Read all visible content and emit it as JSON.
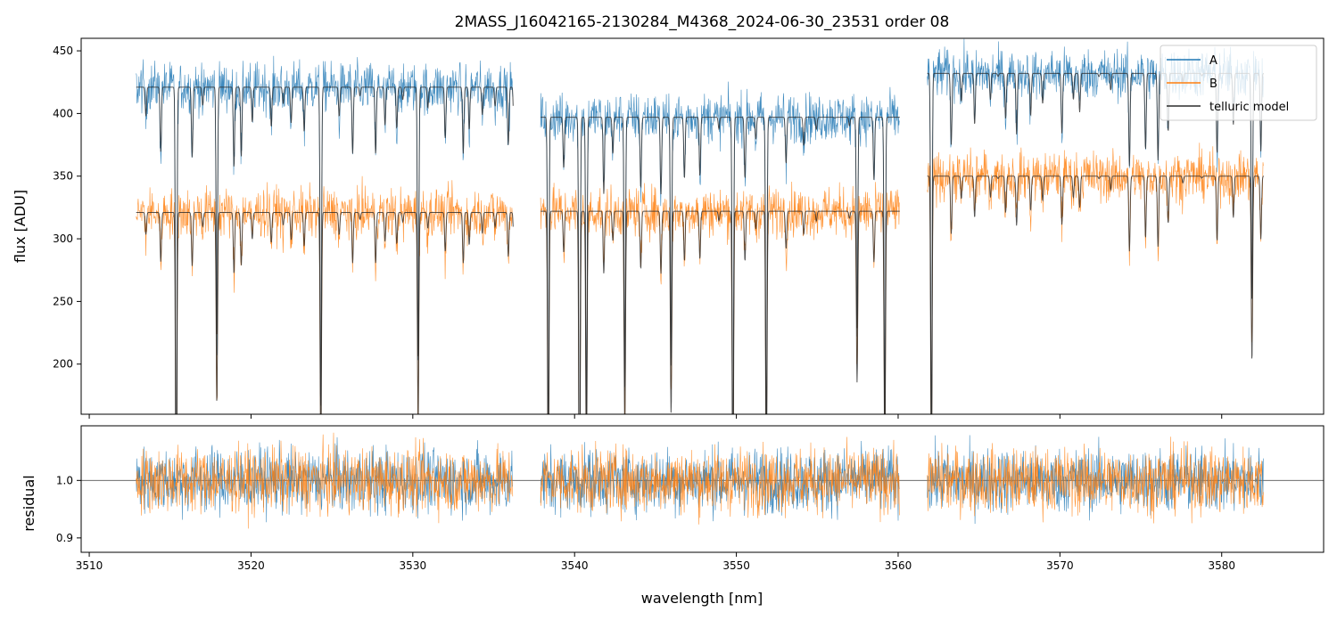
{
  "chart_data": [
    {
      "type": "line",
      "title": "2MASS_J16042165-2130284_M4368_2024-06-30_23531  order 08",
      "xlabel": "",
      "ylabel": "flux [ADU]",
      "xlim": [
        3509.5,
        3586.3
      ],
      "ylim": [
        160,
        460
      ],
      "x_ticks": [
        3510,
        3520,
        3530,
        3540,
        3550,
        3560,
        3570,
        3580
      ],
      "y_ticks": [
        200,
        250,
        300,
        350,
        400,
        450
      ],
      "y_tick_labels": [
        "200",
        "250",
        "300",
        "350",
        "400",
        "450"
      ],
      "segments": [
        [
          3512.9,
          3536.2
        ],
        [
          3537.9,
          3560.1
        ],
        [
          3561.8,
          3582.6
        ]
      ],
      "series": [
        {
          "name": "A",
          "color": "#1f77b4",
          "baseline_by_segment": [
            421,
            397,
            432
          ],
          "noise": 14
        },
        {
          "name": "B",
          "color": "#ff7f0e",
          "baseline_by_segment": [
            321,
            322,
            350
          ],
          "noise": 14
        },
        {
          "name": "telluric model",
          "color": "#2b2b2b"
        }
      ],
      "legend": {
        "position": "top-right",
        "entries": [
          "A",
          "B",
          "telluric model"
        ]
      }
    },
    {
      "type": "line",
      "title": "",
      "xlabel": "wavelength [nm]",
      "ylabel": "residual",
      "xlim": [
        3509.5,
        3586.3
      ],
      "ylim": [
        0.875,
        1.095
      ],
      "x_ticks": [
        3510,
        3520,
        3530,
        3540,
        3550,
        3560,
        3570,
        3580
      ],
      "x_tick_labels": [
        "3510",
        "3520",
        "3530",
        "3540",
        "3550",
        "3560",
        "3570",
        "3580"
      ],
      "y_ticks": [
        0.9,
        1.0
      ],
      "y_tick_labels": [
        "0.9",
        "1.0"
      ],
      "reference_line": 1.0,
      "series": [
        {
          "name": "A",
          "color": "#1f77b4",
          "center": 1.0,
          "spread": 0.04
        },
        {
          "name": "B",
          "color": "#ff7f0e",
          "center": 1.0,
          "spread": 0.04
        }
      ]
    }
  ]
}
